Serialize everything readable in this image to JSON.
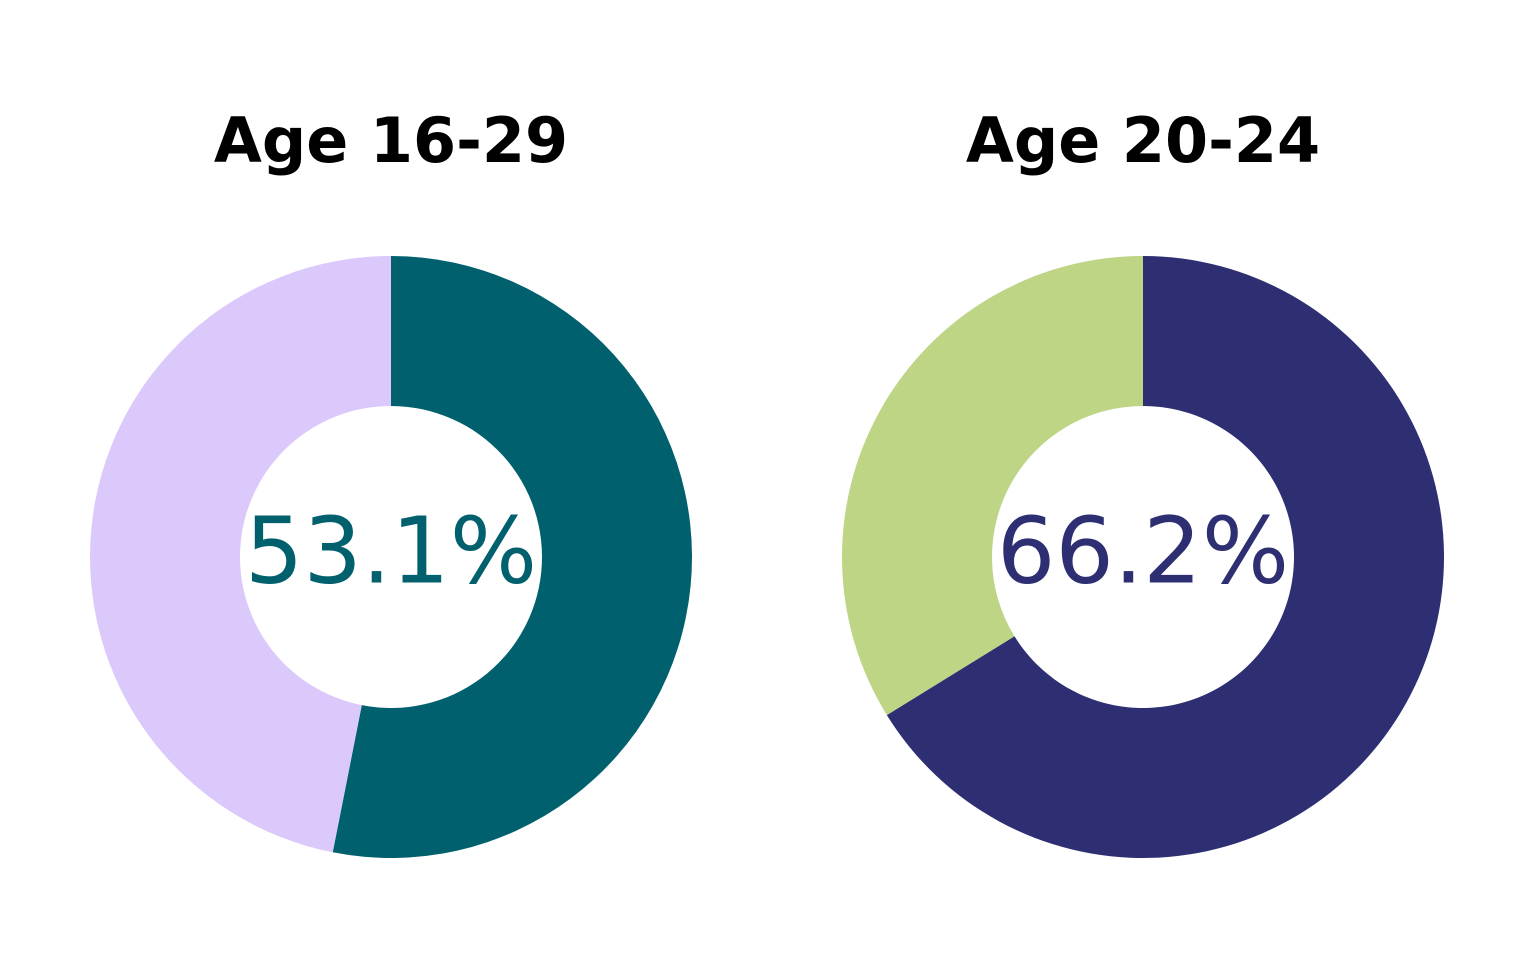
{
  "chart_data": [
    {
      "type": "donut",
      "title": "Age 16-29",
      "values": [
        53.1,
        46.9
      ],
      "value_labels": [
        "53.1%",
        null
      ],
      "colors": [
        "#01606e",
        "#dcc9fb"
      ]
    },
    {
      "type": "donut",
      "title": "Age 20-24",
      "values": [
        66.2,
        33.8
      ],
      "value_labels": [
        "66.2%",
        null
      ],
      "colors": [
        "#2d2f72",
        "#bdd585"
      ]
    }
  ]
}
